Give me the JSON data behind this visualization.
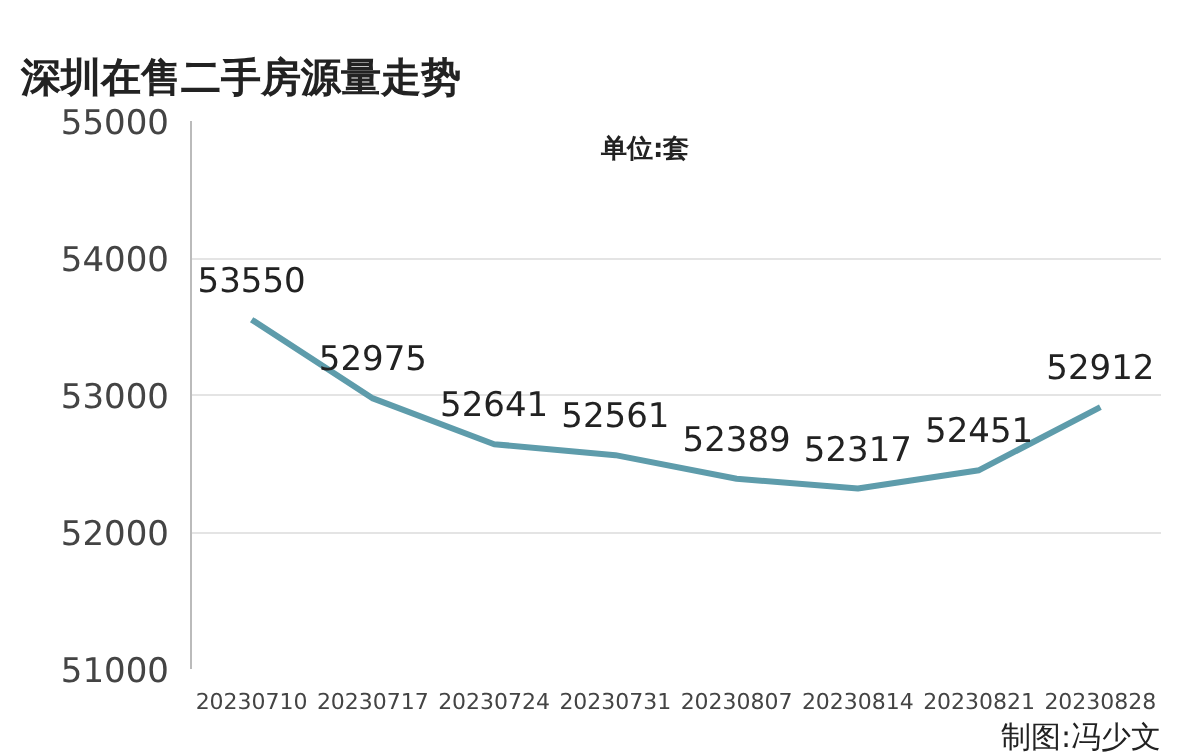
{
  "chart_data": {
    "type": "line",
    "title": "深圳在售二手房源量走势",
    "subtitle": "单位:套",
    "annotations": [
      "制图:冯少文"
    ],
    "categories": [
      "20230710",
      "20230717",
      "20230724",
      "20230731",
      "20230807",
      "20230814",
      "20230821",
      "20230828"
    ],
    "series": [
      {
        "color": "#5e9cab",
        "values": [
          53550,
          52975,
          52641,
          52561,
          52389,
          52317,
          52451,
          52912
        ]
      }
    ],
    "ylim": [
      51000,
      55000
    ],
    "yticks": [
      51000,
      52000,
      53000,
      54000,
      55000
    ],
    "grid": "y",
    "data_labels": true,
    "marker": "none",
    "line_style": "solid",
    "legend": false
  }
}
